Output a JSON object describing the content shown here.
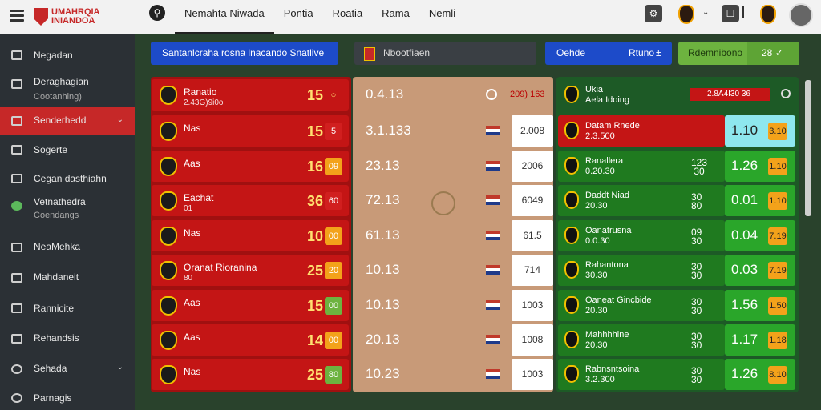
{
  "app": {
    "logo_line1": "UMAHRQIA",
    "logo_line2": "INIANDOA"
  },
  "nav": [
    "Nemahta Niwada",
    "Pontia",
    "Roatia",
    "Rama",
    "Nemli"
  ],
  "sidebar": [
    {
      "label": "Negadan",
      "sub": ""
    },
    {
      "label": "Deraghagian",
      "sub": "Cootanhing)"
    },
    {
      "label": "Senderhedd",
      "sub": "",
      "active": true
    },
    {
      "label": "Sogerte",
      "sub": ""
    },
    {
      "label": "Cegan dasthiahn",
      "sub": ""
    },
    {
      "label": "Vetnathedra",
      "sub": "Coendangs"
    },
    {
      "label": "NeaMehka",
      "sub": ""
    },
    {
      "label": "Mahdaneit",
      "sub": ""
    },
    {
      "label": "Rannicite",
      "sub": ""
    },
    {
      "label": "Rehandsis",
      "sub": ""
    },
    {
      "label": "Sehada",
      "sub": ""
    },
    {
      "label": "Parnagis",
      "sub": ""
    }
  ],
  "toolbar": {
    "search_btn": "Santanlcraha rosna lnacando Snatlive",
    "mid_label": "Nbootfiaen",
    "center_pill_left": "Oehde",
    "center_pill_right": "Rtuno",
    "green_label": "Rdemnibono",
    "green_value": "28"
  },
  "left_rows": [
    {
      "t1": "Ranatio",
      "t2": "2.43G)9i0o",
      "score": "15",
      "q": "",
      "qc": "#c41515"
    },
    {
      "t1": "Nas",
      "t2": "",
      "score": "15",
      "q": "5",
      "qc": "#d11f1f"
    },
    {
      "t1": "Aas",
      "t2": "",
      "score": "16",
      "q": "09",
      "qc": "#f3a21a"
    },
    {
      "t1": "Eachat",
      "t2": "01",
      "score": "36",
      "q": "60",
      "qc": "#d11f1f"
    },
    {
      "t1": "Nas",
      "t2": "",
      "score": "10",
      "q": "00",
      "qc": "#f3a21a"
    },
    {
      "t1": "Oranat Rioranina",
      "t2": "80",
      "score": "25",
      "q": "20",
      "qc": "#f3a21a"
    },
    {
      "t1": "Aas",
      "t2": "",
      "score": "15",
      "q": "00",
      "qc": "#6db33f"
    },
    {
      "t1": "Aas",
      "t2": "",
      "score": "14",
      "q": "00",
      "qc": "#f3a21a"
    },
    {
      "t1": "Nas",
      "t2": "",
      "score": "25",
      "q": "80",
      "qc": "#6db33f"
    }
  ],
  "center_header": {
    "val": "0.4.13",
    "tag": "209) 163"
  },
  "center_rows": [
    {
      "val": "3.1.133",
      "box": "2.008"
    },
    {
      "val": "23.13",
      "box": "2006"
    },
    {
      "val": "72.13",
      "box": "6049"
    },
    {
      "val": "61.13",
      "box": "61.5"
    },
    {
      "val": "10.13",
      "box": "714"
    },
    {
      "val": "10.13",
      "box": "1003"
    },
    {
      "val": "20.13",
      "box": "1008"
    },
    {
      "val": "10.23",
      "box": "1003"
    }
  ],
  "right_header": {
    "t1": "Ukia",
    "t2": "Aela Idoing",
    "tag": "2.8A4I30 36"
  },
  "right_rows": [
    {
      "t1": "Datam Rnede",
      "t2": "2.3.500",
      "n1": "",
      "n2": "",
      "ov": "1.10",
      "yq": "3.10",
      "red": "#c41515",
      "rbox": "#8ee7ee"
    },
    {
      "t1": "Ranallera",
      "t2": "0.20.30",
      "n1": "123",
      "n2": "30",
      "ov": "1.26",
      "yq": "1.10",
      "red": "#1f7a1f",
      "rbox": "#2aa62a"
    },
    {
      "t1": "Daddt Niad",
      "t2": "20.30",
      "n1": "30",
      "n2": "80",
      "ov": "0.01",
      "yq": "1.10",
      "red": "#1f7a1f",
      "rbox": "#2aa62a"
    },
    {
      "t1": "Oanatrusna",
      "t2": "0.0.30",
      "n1": "09",
      "n2": "30",
      "ov": "0.04",
      "yq": "7.19",
      "red": "#1f7a1f",
      "rbox": "#2aa62a"
    },
    {
      "t1": "Rahantona",
      "t2": "30.30",
      "n1": "30",
      "n2": "30",
      "ov": "0.03",
      "yq": "7.19",
      "red": "#1f7a1f",
      "rbox": "#2aa62a"
    },
    {
      "t1": "Oaneat Gincbide",
      "t2": "20.30",
      "n1": "30",
      "n2": "30",
      "ov": "1.56",
      "yq": "1.50",
      "red": "#1f7a1f",
      "rbox": "#2aa62a"
    },
    {
      "t1": "Mahhhhine",
      "t2": "20.30",
      "n1": "30",
      "n2": "30",
      "ov": "1.17",
      "yq": "1.18",
      "red": "#1f7a1f",
      "rbox": "#2aa62a"
    },
    {
      "t1": "Rabnsntsoina",
      "t2": "3.2.300",
      "n1": "30",
      "n2": "30",
      "ov": "1.26",
      "yq": "8.10",
      "red": "#1f7a1f",
      "rbox": "#2aa62a"
    }
  ]
}
